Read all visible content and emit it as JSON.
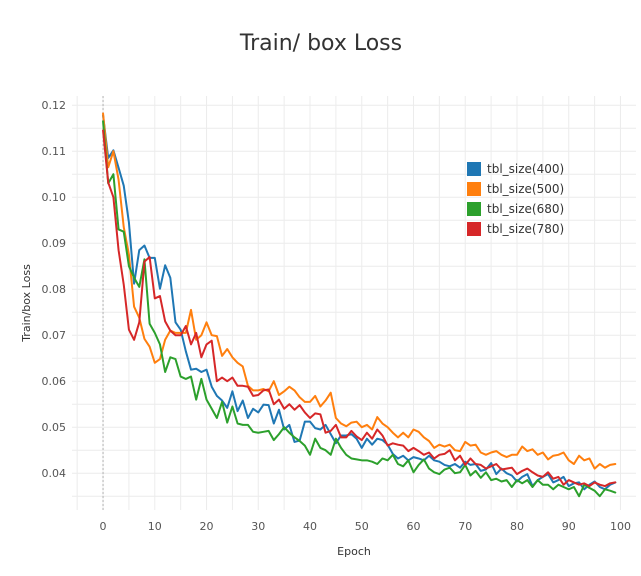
{
  "chart_data": {
    "type": "line",
    "title": "Train/ box Loss",
    "xlabel": "Epoch",
    "ylabel": "Train/box Loss",
    "xlim": [
      -6,
      103
    ],
    "ylim": [
      0.032,
      0.122
    ],
    "xticks": [
      0,
      10,
      20,
      30,
      40,
      50,
      60,
      70,
      80,
      90,
      100
    ],
    "yticks": [
      0.04,
      0.05,
      0.06,
      0.07,
      0.08,
      0.09,
      0.1,
      0.11,
      0.12
    ],
    "ytick_labels": [
      "0.04",
      "0.05",
      "0.06",
      "0.07",
      "0.08",
      "0.09",
      "0.10",
      "0.11",
      "0.12"
    ],
    "grid": true,
    "legend_position": "top-right",
    "series": [
      {
        "name": "tbl_size(400)",
        "color": "#1f77b4",
        "values": [
          0.1178,
          0.1085,
          0.1102,
          0.1064,
          0.1025,
          0.0945,
          0.0812,
          0.0885,
          0.0895,
          0.0868,
          0.0868,
          0.0801,
          0.0852,
          0.0825,
          0.0728,
          0.0712,
          0.0665,
          0.0625,
          0.0627,
          0.062,
          0.0625,
          0.0588,
          0.0568,
          0.0558,
          0.0542,
          0.0578,
          0.0535,
          0.0558,
          0.052,
          0.054,
          0.0532,
          0.0549,
          0.0548,
          0.0508,
          0.0538,
          0.0495,
          0.0505,
          0.0468,
          0.0471,
          0.0512,
          0.0512,
          0.0498,
          0.0495,
          0.0505,
          0.0485,
          0.0465,
          0.0482,
          0.0482,
          0.0485,
          0.0475,
          0.0455,
          0.0475,
          0.0462,
          0.0475,
          0.0472,
          0.0462,
          0.0442,
          0.0432,
          0.0438,
          0.0428,
          0.0435,
          0.0432,
          0.0428,
          0.0438,
          0.0428,
          0.0425,
          0.0418,
          0.0415,
          0.042,
          0.0412,
          0.0425,
          0.0418,
          0.042,
          0.0405,
          0.0408,
          0.0422,
          0.0398,
          0.041,
          0.04,
          0.0395,
          0.0382,
          0.0392,
          0.0398,
          0.0372,
          0.0385,
          0.0392,
          0.0398,
          0.038,
          0.0385,
          0.0392,
          0.0372,
          0.0378,
          0.038,
          0.0365,
          0.0375,
          0.0382,
          0.037,
          0.0365,
          0.0375,
          0.038
        ]
      },
      {
        "name": "tbl_size(500)",
        "color": "#ff7f0e",
        "values": [
          0.1182,
          0.1065,
          0.11,
          0.1038,
          0.0935,
          0.0875,
          0.0762,
          0.0738,
          0.0692,
          0.0675,
          0.064,
          0.0648,
          0.069,
          0.071,
          0.0705,
          0.0705,
          0.0705,
          0.0755,
          0.069,
          0.07,
          0.0728,
          0.07,
          0.0698,
          0.0655,
          0.067,
          0.0652,
          0.064,
          0.0632,
          0.059,
          0.058,
          0.058,
          0.0583,
          0.0578,
          0.06,
          0.057,
          0.0578,
          0.0588,
          0.058,
          0.0565,
          0.0555,
          0.0555,
          0.0568,
          0.0545,
          0.0558,
          0.0575,
          0.052,
          0.0508,
          0.0502,
          0.051,
          0.0512,
          0.05,
          0.0505,
          0.0495,
          0.0522,
          0.0508,
          0.05,
          0.0488,
          0.0478,
          0.0488,
          0.0478,
          0.0495,
          0.049,
          0.0478,
          0.047,
          0.0455,
          0.0462,
          0.0458,
          0.0462,
          0.045,
          0.0448,
          0.0468,
          0.046,
          0.0462,
          0.0445,
          0.044,
          0.0445,
          0.0448,
          0.044,
          0.0435,
          0.044,
          0.044,
          0.0458,
          0.0448,
          0.0452,
          0.044,
          0.0445,
          0.043,
          0.0438,
          0.044,
          0.0445,
          0.0428,
          0.042,
          0.0438,
          0.0428,
          0.0432,
          0.041,
          0.042,
          0.0412,
          0.0418,
          0.042
        ]
      },
      {
        "name": "tbl_size(680)",
        "color": "#2ca02c",
        "values": [
          0.1165,
          0.103,
          0.105,
          0.093,
          0.0925,
          0.085,
          0.0825,
          0.0805,
          0.0865,
          0.0725,
          0.0705,
          0.068,
          0.062,
          0.0652,
          0.0648,
          0.061,
          0.0605,
          0.061,
          0.056,
          0.0605,
          0.056,
          0.054,
          0.052,
          0.0555,
          0.051,
          0.0545,
          0.0508,
          0.0505,
          0.0505,
          0.049,
          0.0488,
          0.049,
          0.0492,
          0.0472,
          0.0485,
          0.05,
          0.0488,
          0.0478,
          0.047,
          0.046,
          0.044,
          0.0475,
          0.0455,
          0.045,
          0.044,
          0.0475,
          0.0455,
          0.044,
          0.0432,
          0.043,
          0.0428,
          0.0428,
          0.0425,
          0.042,
          0.0432,
          0.0428,
          0.044,
          0.042,
          0.0415,
          0.0428,
          0.0402,
          0.0418,
          0.043,
          0.041,
          0.0402,
          0.0398,
          0.0408,
          0.0412,
          0.04,
          0.0402,
          0.0418,
          0.0395,
          0.0405,
          0.039,
          0.0402,
          0.0385,
          0.0388,
          0.0382,
          0.0385,
          0.037,
          0.0385,
          0.0378,
          0.0385,
          0.037,
          0.0385,
          0.0375,
          0.0375,
          0.0365,
          0.0375,
          0.037,
          0.0365,
          0.037,
          0.035,
          0.0375,
          0.0368,
          0.0362,
          0.035,
          0.0365,
          0.0362,
          0.0358
        ]
      },
      {
        "name": "tbl_size(780)",
        "color": "#d62728",
        "values": [
          0.1145,
          0.1032,
          0.1,
          0.0885,
          0.081,
          0.0712,
          0.069,
          0.0728,
          0.086,
          0.087,
          0.078,
          0.0785,
          0.073,
          0.071,
          0.07,
          0.07,
          0.072,
          0.068,
          0.0705,
          0.0652,
          0.068,
          0.0688,
          0.06,
          0.0608,
          0.06,
          0.0608,
          0.059,
          0.059,
          0.0588,
          0.0568,
          0.057,
          0.058,
          0.0582,
          0.055,
          0.056,
          0.054,
          0.055,
          0.0538,
          0.0548,
          0.0532,
          0.052,
          0.053,
          0.0528,
          0.0488,
          0.0492,
          0.0505,
          0.0478,
          0.0478,
          0.0492,
          0.048,
          0.0472,
          0.0488,
          0.0475,
          0.0495,
          0.0482,
          0.046,
          0.0465,
          0.0462,
          0.046,
          0.0448,
          0.0455,
          0.0448,
          0.044,
          0.0445,
          0.0432,
          0.044,
          0.0442,
          0.045,
          0.0428,
          0.0438,
          0.0418,
          0.0432,
          0.042,
          0.0418,
          0.041,
          0.0415,
          0.042,
          0.0408,
          0.041,
          0.0412,
          0.0398,
          0.0405,
          0.041,
          0.0402,
          0.0395,
          0.0392,
          0.0402,
          0.0388,
          0.0392,
          0.0375,
          0.0385,
          0.038,
          0.0375,
          0.0378,
          0.0372,
          0.038,
          0.0375,
          0.0372,
          0.0378,
          0.038
        ]
      }
    ]
  }
}
